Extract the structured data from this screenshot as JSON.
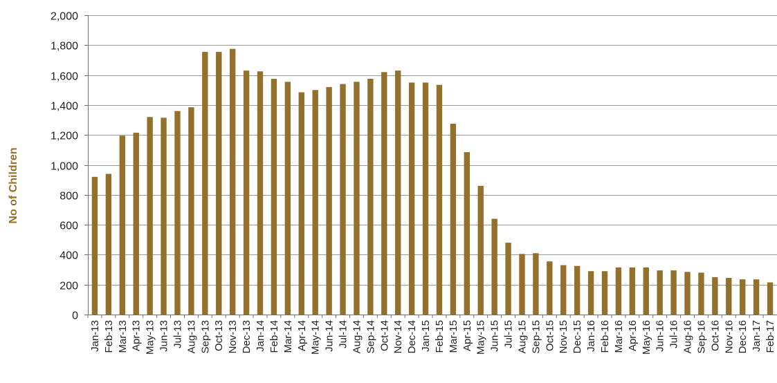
{
  "chart_data": {
    "type": "bar",
    "title": "",
    "xlabel": "",
    "ylabel": "No of Children",
    "ylim": [
      0,
      2000
    ],
    "yticks": [
      "0",
      "200",
      "400",
      "600",
      "800",
      "1,000",
      "1,200",
      "1,400",
      "1,600",
      "1,800",
      "2,000"
    ],
    "ytick_values": [
      0,
      200,
      400,
      600,
      800,
      1000,
      1200,
      1400,
      1600,
      1800,
      2000
    ],
    "grid": true,
    "legend": "none",
    "bar_color": "#93702C",
    "ylabel_color": "#93702C",
    "categories": [
      "Jan-13",
      "Feb-13",
      "Mar-13",
      "Apr-13",
      "May-13",
      "Jun-13",
      "Jul-13",
      "Aug-13",
      "Sep-13",
      "Oct-13",
      "Nov-13",
      "Dec-13",
      "Jan-14",
      "Feb-14",
      "Mar-14",
      "Apr-14",
      "May-14",
      "Jun-14",
      "Jul-14",
      "Aug-14",
      "Sep-14",
      "Oct-14",
      "Nov-14",
      "Dec-14",
      "Jan-15",
      "Feb-15",
      "Mar-15",
      "Apr-15",
      "May-15",
      "Jun-15",
      "Jul-15",
      "Aug-15",
      "Sep-15",
      "Oct-15",
      "Nov-15",
      "Dec-15",
      "Jan-16",
      "Feb-16",
      "Mar-16",
      "Apr-16",
      "May-16",
      "Jun-16",
      "Jul-16",
      "Aug-16",
      "Sep-16",
      "Oct-16",
      "Nov-16",
      "Dec-16",
      "Jan-17",
      "Feb-17"
    ],
    "values": [
      920,
      940,
      1195,
      1215,
      1320,
      1315,
      1360,
      1385,
      1755,
      1755,
      1775,
      1630,
      1625,
      1575,
      1555,
      1485,
      1500,
      1520,
      1540,
      1555,
      1575,
      1620,
      1630,
      1550,
      1550,
      1535,
      1275,
      1085,
      860,
      640,
      480,
      405,
      410,
      355,
      330,
      325,
      290,
      290,
      315,
      315,
      315,
      295,
      295,
      285,
      280,
      250,
      245,
      235,
      235,
      215
    ]
  }
}
